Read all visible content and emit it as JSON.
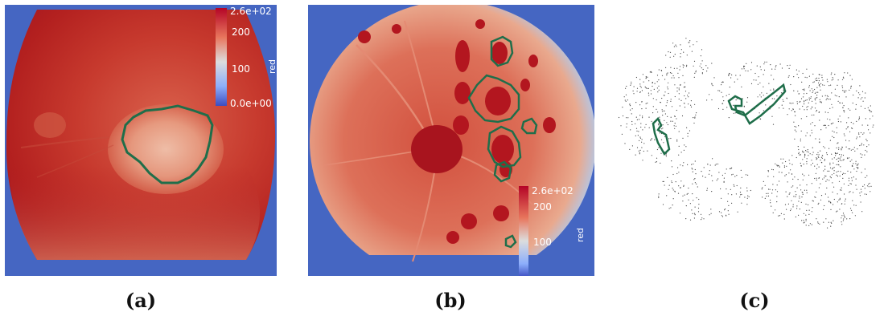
{
  "figure": {
    "panels": [
      {
        "caption": "(a)",
        "colorbar": {
          "max_label": "2.6e+02",
          "mid_label": "200",
          "low_label": "100",
          "min_label": "0.0e+00",
          "title": "red"
        }
      },
      {
        "caption": "(b)",
        "colorbar": {
          "max_label": "2.6e+02",
          "mid_label": "200",
          "low_label": "100",
          "title": "red"
        }
      },
      {
        "caption": "(c)"
      }
    ],
    "colors": {
      "background_blue": "#3f5fbf",
      "retina_dark_red": "#b0131e",
      "retina_red": "#cf4a3a",
      "contour_green": "#1f6e4a",
      "point_cloud": "#444444"
    }
  }
}
